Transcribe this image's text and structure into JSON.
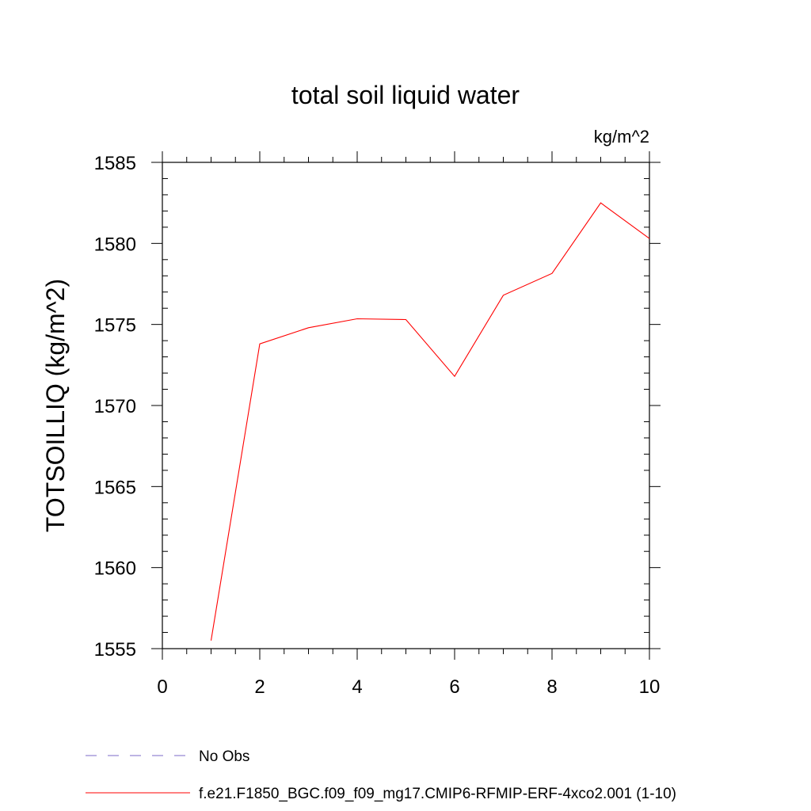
{
  "chart_data": {
    "type": "line",
    "title": "total soil liquid water",
    "units": "kg/m^2",
    "xlabel": "",
    "ylabel": "TOTSOILLIQ  (kg/m^2)",
    "xlim": [
      0,
      10
    ],
    "ylim": [
      1555,
      1585
    ],
    "xticks": [
      0,
      2,
      4,
      6,
      8,
      10
    ],
    "yticks": [
      1555,
      1560,
      1565,
      1570,
      1575,
      1580,
      1585
    ],
    "grid": false,
    "legend_position": "bottom",
    "series": [
      {
        "name": "f.e21.F1850_BGC.f09_f09_mg17.CMIP6-RFMIP-ERF-4xco2.001 (1-10)",
        "color": "#ff0000",
        "style": "solid",
        "x": [
          1,
          2,
          3,
          4,
          5,
          6,
          7,
          8,
          9,
          10
        ],
        "y": [
          1555.5,
          1573.8,
          1574.8,
          1575.35,
          1575.3,
          1571.8,
          1576.8,
          1578.15,
          1582.5,
          1580.3
        ]
      }
    ],
    "legend": [
      {
        "label": "No Obs",
        "color": "#7b68c8",
        "style": "dashed"
      },
      {
        "label": "f.e21.F1850_BGC.f09_f09_mg17.CMIP6-RFMIP-ERF-4xco2.001 (1-10)",
        "color": "#ff0000",
        "style": "solid"
      }
    ]
  }
}
